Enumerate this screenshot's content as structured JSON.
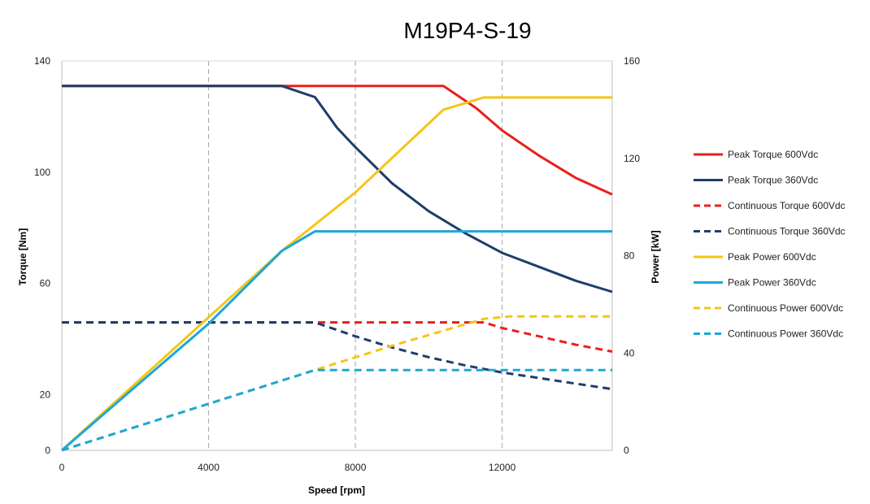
{
  "chart_data": {
    "type": "line",
    "title": "M19P4-S-19",
    "xlabel": "Speed [rpm]",
    "ylabel_left": "Torque [Nm]",
    "ylabel_right": "Power [kW]",
    "xlim": [
      0,
      15000
    ],
    "ylim_left": [
      0,
      140
    ],
    "ylim_right": [
      0,
      160
    ],
    "xticks": [
      0,
      4000,
      8000,
      12000
    ],
    "yticks_left": [
      0,
      20,
      60,
      100,
      140
    ],
    "yticks_right": [
      0,
      40,
      80,
      120,
      160
    ],
    "grid": "vertical dashed",
    "legend_position": "right",
    "series": [
      {
        "name": "Peak Torque 600Vdc",
        "axis": "left",
        "color": "#e8201c",
        "style": "solid",
        "x": [
          0,
          6000,
          10400,
          11300,
          12000,
          13000,
          14000,
          15000
        ],
        "y": [
          131,
          131,
          131,
          123,
          115,
          106,
          98,
          92
        ]
      },
      {
        "name": "Peak Torque 360Vdc",
        "axis": "left",
        "color": "#1f3d6b",
        "style": "solid",
        "x": [
          0,
          6000,
          6900,
          7500,
          8000,
          9000,
          10000,
          11000,
          12000,
          13000,
          14000,
          15000
        ],
        "y": [
          131,
          131,
          127,
          116,
          109,
          96,
          86,
          78,
          71,
          66,
          61,
          57
        ]
      },
      {
        "name": "Continuous Torque 600Vdc",
        "axis": "left",
        "color": "#e8201c",
        "style": "dashed",
        "x": [
          0,
          11500,
          12000,
          13000,
          14000,
          15000
        ],
        "y": [
          46,
          46,
          44,
          41,
          38,
          35.5
        ]
      },
      {
        "name": "Continuous Torque 360Vdc",
        "axis": "left",
        "color": "#1f3d6b",
        "style": "dashed",
        "x": [
          0,
          6900,
          8000,
          9000,
          10000,
          11000,
          12000,
          13000,
          14000,
          15000
        ],
        "y": [
          46,
          46,
          41,
          37,
          33.5,
          30.5,
          28,
          26,
          24,
          22
        ]
      },
      {
        "name": "Peak Power 600Vdc",
        "axis": "right",
        "color": "#f5c518",
        "style": "solid",
        "x": [
          0,
          6000,
          8000,
          10400,
          11500,
          15000
        ],
        "y": [
          0,
          82,
          106,
          140,
          145,
          145
        ]
      },
      {
        "name": "Peak Power 360Vdc",
        "axis": "right",
        "color": "#1ca8d8",
        "style": "solid",
        "x": [
          0,
          2300,
          4000,
          6000,
          6900,
          15000
        ],
        "y": [
          0,
          30,
          52,
          82,
          90,
          90
        ]
      },
      {
        "name": "Continuous Power 600Vdc",
        "axis": "right",
        "color": "#f5c518",
        "style": "dashed",
        "x": [
          0,
          6900,
          9000,
          11500,
          12200,
          15000
        ],
        "y": [
          0,
          33,
          43,
          54,
          55,
          55
        ]
      },
      {
        "name": "Continuous Power 360Vdc",
        "axis": "right",
        "color": "#1ca8d8",
        "style": "dashed",
        "x": [
          0,
          6900,
          15000
        ],
        "y": [
          0,
          33,
          33
        ]
      }
    ]
  }
}
